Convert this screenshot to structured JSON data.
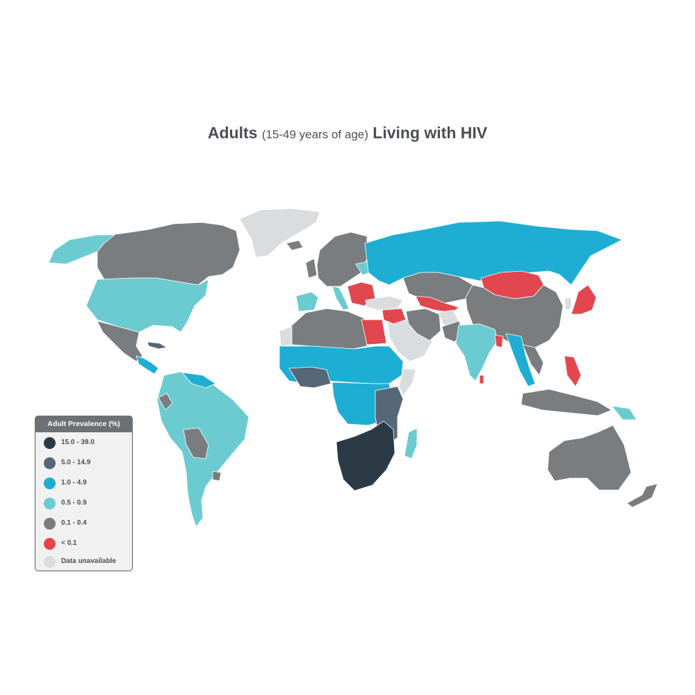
{
  "title": {
    "part1": "Adults",
    "part2": "(15-49 years of age)",
    "part3": "Living with HIV"
  },
  "legend": {
    "title": "Adult Prevalence (%)",
    "items": [
      {
        "label": "15.0 - 39.0",
        "color": "#2c3a45"
      },
      {
        "label": "5.0 - 14.9",
        "color": "#566878"
      },
      {
        "label": "1.0 - 4.9",
        "color": "#1eaed4"
      },
      {
        "label": "0.5 - 0.9",
        "color": "#6ccbd1"
      },
      {
        "label": "0.1 - 0.4",
        "color": "#7a7d7f"
      },
      {
        "label": "< 0.1",
        "color": "#e2474f"
      },
      {
        "label": "Data unavailable",
        "color": "#d9dddf"
      }
    ]
  }
}
